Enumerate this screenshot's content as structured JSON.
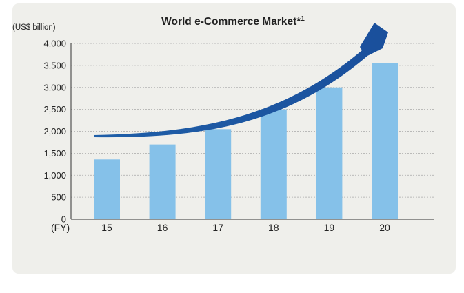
{
  "chart_data": {
    "type": "bar",
    "title": "World e-Commerce Market*",
    "title_superscript": "1",
    "ylabel": "(US$ billion)",
    "xlabel": "(FY)",
    "categories": [
      "15",
      "16",
      "17",
      "18",
      "19",
      "20"
    ],
    "values": [
      1360,
      1700,
      2050,
      2500,
      3000,
      3550
    ],
    "ylim": [
      0,
      4000
    ],
    "yticks": [
      0,
      500,
      1000,
      1500,
      2000,
      2500,
      3000,
      3500,
      4000
    ],
    "ytick_labels": [
      "0",
      "500",
      "1,000",
      "1,500",
      "2,000",
      "2,500",
      "3,000",
      "3,500",
      "4,000"
    ],
    "grid": true,
    "bar_color": "#85c1e9",
    "trend_arrow_color": "#1a5ba8",
    "background": "#efefeb"
  }
}
